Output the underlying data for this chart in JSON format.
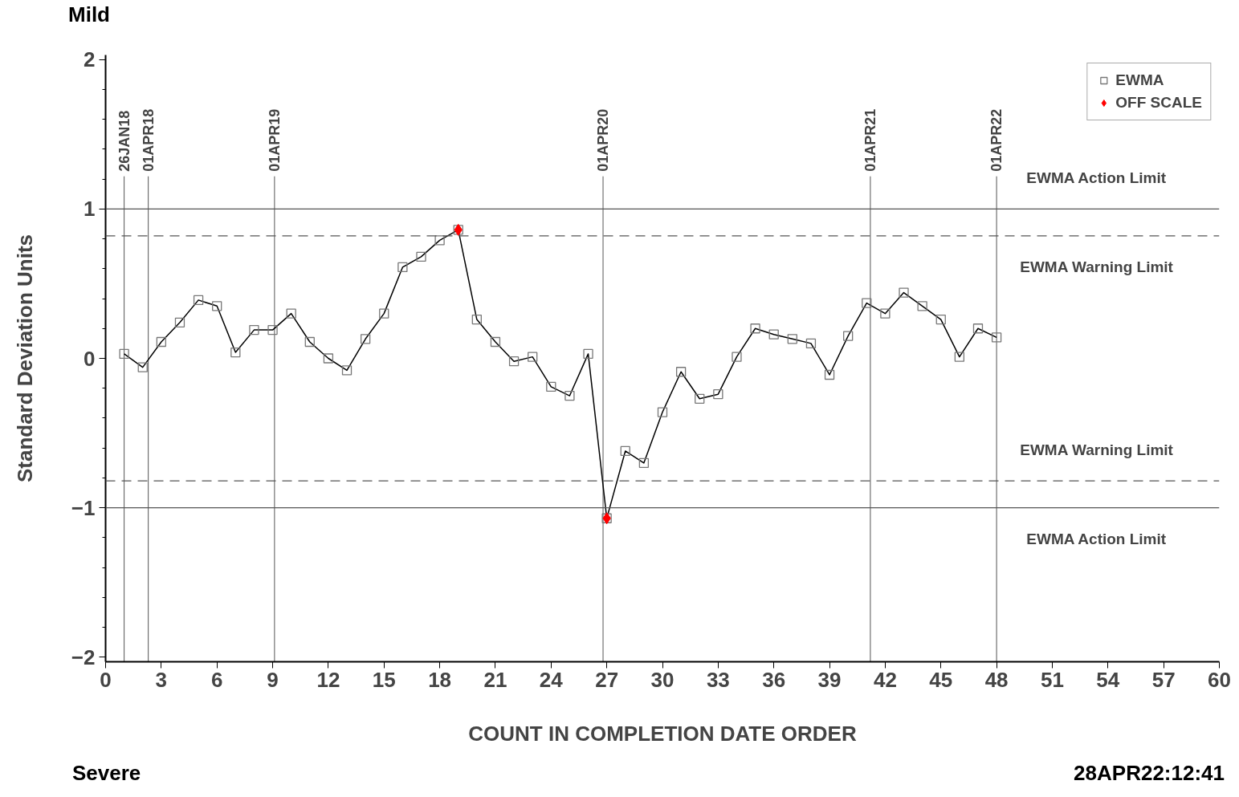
{
  "chart_data": {
    "type": "line",
    "xlabel": "COUNT IN COMPLETION DATE ORDER",
    "ylabel": "Standard Deviation Units",
    "xlim": [
      0,
      60
    ],
    "xticks": [
      0,
      3,
      6,
      9,
      12,
      15,
      18,
      21,
      24,
      27,
      30,
      33,
      36,
      39,
      42,
      45,
      48,
      51,
      54,
      57,
      60
    ],
    "ylim": [
      -2.03,
      2.03
    ],
    "yticks": [
      -2,
      -1,
      0,
      1,
      2
    ],
    "grid": false,
    "legend": "top right",
    "line_style": "solid",
    "series": [
      {
        "name": "EWMA",
        "color": "#000000",
        "marker": "square",
        "x": [
          1,
          2,
          3,
          4,
          5,
          6,
          7,
          8,
          9,
          10,
          11,
          12,
          13,
          14,
          15,
          16,
          17,
          18,
          19,
          20,
          21,
          22,
          23,
          24,
          25,
          26,
          27,
          28,
          29,
          30,
          31,
          32,
          33,
          34,
          35,
          36,
          37,
          38,
          39,
          40,
          41,
          42,
          43,
          44,
          45,
          46,
          47,
          48
        ],
        "values": [
          0.03,
          -0.06,
          0.11,
          0.24,
          0.39,
          0.35,
          0.04,
          0.19,
          0.19,
          0.3,
          0.11,
          0.0,
          -0.08,
          0.13,
          0.3,
          0.61,
          0.68,
          0.79,
          0.86,
          0.26,
          0.11,
          -0.02,
          0.01,
          -0.19,
          -0.25,
          0.03,
          -1.07,
          -0.62,
          -0.7,
          -0.36,
          -0.09,
          -0.27,
          -0.24,
          0.01,
          0.2,
          0.16,
          0.13,
          0.1,
          -0.11,
          0.15,
          0.37,
          0.3,
          0.44,
          0.35,
          0.26,
          0.01,
          0.2,
          0.14
        ]
      },
      {
        "name": "OFF SCALE",
        "type": "scatter",
        "color": "#ff0000",
        "marker": "diamond",
        "x": [
          19,
          27
        ],
        "values": [
          0.86,
          -1.07
        ]
      }
    ],
    "ref_lines": [
      {
        "axis": "y",
        "value": 1,
        "label": "EWMA Action Limit",
        "line_style": "solid"
      },
      {
        "axis": "y",
        "value": 0.82,
        "label": "EWMA Warning Limit",
        "line_style": "dashed"
      },
      {
        "axis": "y",
        "value": -0.82,
        "label": "EWMA Warning Limit",
        "line_style": "dashed"
      },
      {
        "axis": "y",
        "value": -1,
        "label": "EWMA Action Limit",
        "line_style": "solid"
      },
      {
        "axis": "x",
        "value": 1,
        "label": "26JAN18"
      },
      {
        "axis": "x",
        "value": 2.3,
        "label": "01APR18"
      },
      {
        "axis": "x",
        "value": 9.1,
        "label": "01APR19"
      },
      {
        "axis": "x",
        "value": 26.8,
        "label": "01APR20"
      },
      {
        "axis": "x",
        "value": 41.2,
        "label": "01APR21"
      },
      {
        "axis": "x",
        "value": 48,
        "label": "01APR22"
      }
    ],
    "annotations": [
      "Mild",
      "Severe",
      "28APR22:12:41"
    ]
  }
}
